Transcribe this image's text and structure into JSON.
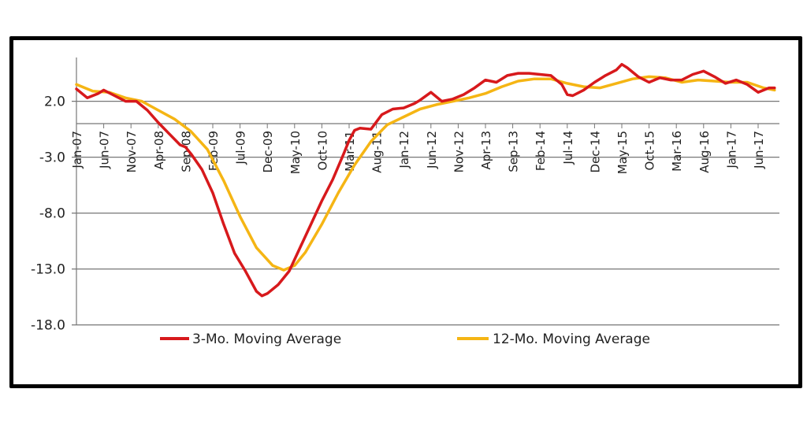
{
  "chart_data": {
    "type": "line",
    "title": "",
    "xlabel": "",
    "ylabel": "",
    "ylim": [
      -18.0,
      6.0
    ],
    "y_ticks": [
      "2.0",
      "-3.0",
      "-8.0",
      "-13.0",
      "-18.0"
    ],
    "y_tick_values": [
      2.0,
      -3.0,
      -8.0,
      -13.0,
      -18.0
    ],
    "x_ticks": [
      "Jan-07",
      "Jun-07",
      "Nov-07",
      "Apr-08",
      "Sep-08",
      "Feb-09",
      "Jul-09",
      "Dec-09",
      "May-10",
      "Oct-10",
      "Mar-11",
      "Aug-11",
      "Jan-12",
      "Jun-12",
      "Nov-12",
      "Apr-13",
      "Sep-13",
      "Feb-14",
      "Jul-14",
      "Dec-14",
      "May-15",
      "Oct-15",
      "Mar-16",
      "Aug-16",
      "Jan-17",
      "Jun-17"
    ],
    "xlim": [
      "Jan-07",
      "Sep-17"
    ],
    "grid": "horizontal",
    "legend": "bottom",
    "series": [
      {
        "name": "3-Mo. Moving Average",
        "color": "#d7191c",
        "x": [
          "Jan-07",
          "Mar-07",
          "May-07",
          "Jun-07",
          "Aug-07",
          "Oct-07",
          "Dec-07",
          "Feb-08",
          "Apr-08",
          "Jun-08",
          "Aug-08",
          "Sep-08",
          "Oct-08",
          "Dec-08",
          "Feb-09",
          "Apr-09",
          "Jun-09",
          "Aug-09",
          "Oct-09",
          "Nov-09",
          "Dec-09",
          "Feb-10",
          "Apr-10",
          "Jun-10",
          "Aug-10",
          "Oct-10",
          "Dec-10",
          "Feb-11",
          "Mar-11",
          "Apr-11",
          "May-11",
          "Jul-11",
          "Sep-11",
          "Nov-11",
          "Jan-12",
          "Mar-12",
          "Apr-12",
          "Jun-12",
          "Aug-12",
          "Oct-12",
          "Dec-12",
          "Feb-13",
          "Apr-13",
          "Jun-13",
          "Aug-13",
          "Oct-13",
          "Dec-13",
          "Feb-14",
          "Apr-14",
          "Jun-14",
          "Jul-14",
          "Aug-14",
          "Oct-14",
          "Dec-14",
          "Feb-15",
          "Apr-15",
          "May-15",
          "Jun-15",
          "Aug-15",
          "Oct-15",
          "Dec-15",
          "Feb-16",
          "Apr-16",
          "Jun-16",
          "Aug-16",
          "Oct-16",
          "Dec-16",
          "Feb-17",
          "Apr-17",
          "Jun-17",
          "Aug-17",
          "Sep-17"
        ],
        "values": [
          3.1,
          2.3,
          2.7,
          3.0,
          2.5,
          2.0,
          2.0,
          1.2,
          0.1,
          -0.9,
          -1.9,
          -2.1,
          -2.7,
          -4.1,
          -6.2,
          -9.0,
          -11.6,
          -13.2,
          -15.0,
          -15.4,
          -15.2,
          -14.4,
          -13.2,
          -11.1,
          -9.0,
          -6.9,
          -5.0,
          -2.7,
          -1.5,
          -0.6,
          -0.4,
          -0.5,
          0.8,
          1.3,
          1.4,
          1.8,
          2.1,
          2.8,
          2.0,
          2.2,
          2.6,
          3.2,
          3.9,
          3.7,
          4.3,
          4.5,
          4.5,
          4.4,
          4.3,
          3.5,
          2.6,
          2.5,
          3.0,
          3.7,
          4.3,
          4.8,
          5.3,
          5.0,
          4.2,
          3.7,
          4.1,
          3.9,
          3.9,
          4.4,
          4.7,
          4.2,
          3.6,
          3.9,
          3.5,
          2.8,
          3.2,
          3.2
        ]
      },
      {
        "name": "12-Mo. Moving Average",
        "color": "#f5b514",
        "x": [
          "Jan-07",
          "Apr-07",
          "Jul-07",
          "Oct-07",
          "Jan-08",
          "Apr-08",
          "Jul-08",
          "Oct-08",
          "Jan-09",
          "Apr-09",
          "Jul-09",
          "Oct-09",
          "Jan-10",
          "Mar-10",
          "May-10",
          "Jul-10",
          "Oct-10",
          "Jan-11",
          "Apr-11",
          "Jul-11",
          "Oct-11",
          "Jan-12",
          "Apr-12",
          "Jul-12",
          "Oct-12",
          "Jan-13",
          "Apr-13",
          "Jul-13",
          "Oct-13",
          "Jan-14",
          "Apr-14",
          "Jul-14",
          "Oct-14",
          "Jan-15",
          "Apr-15",
          "Jul-15",
          "Oct-15",
          "Jan-16",
          "Apr-16",
          "Jul-16",
          "Oct-16",
          "Jan-17",
          "Apr-17",
          "Jul-17",
          "Sep-17"
        ],
        "values": [
          3.5,
          2.9,
          2.8,
          2.3,
          2.0,
          1.2,
          0.4,
          -0.7,
          -2.3,
          -5.1,
          -8.3,
          -11.1,
          -12.7,
          -13.1,
          -12.7,
          -11.5,
          -9.0,
          -6.2,
          -3.7,
          -1.6,
          -0.1,
          0.6,
          1.3,
          1.7,
          2.0,
          2.3,
          2.7,
          3.3,
          3.8,
          4.0,
          4.0,
          3.6,
          3.3,
          3.2,
          3.6,
          4.0,
          4.2,
          4.1,
          3.7,
          3.9,
          3.8,
          3.7,
          3.7,
          3.2,
          3.0
        ]
      }
    ]
  }
}
